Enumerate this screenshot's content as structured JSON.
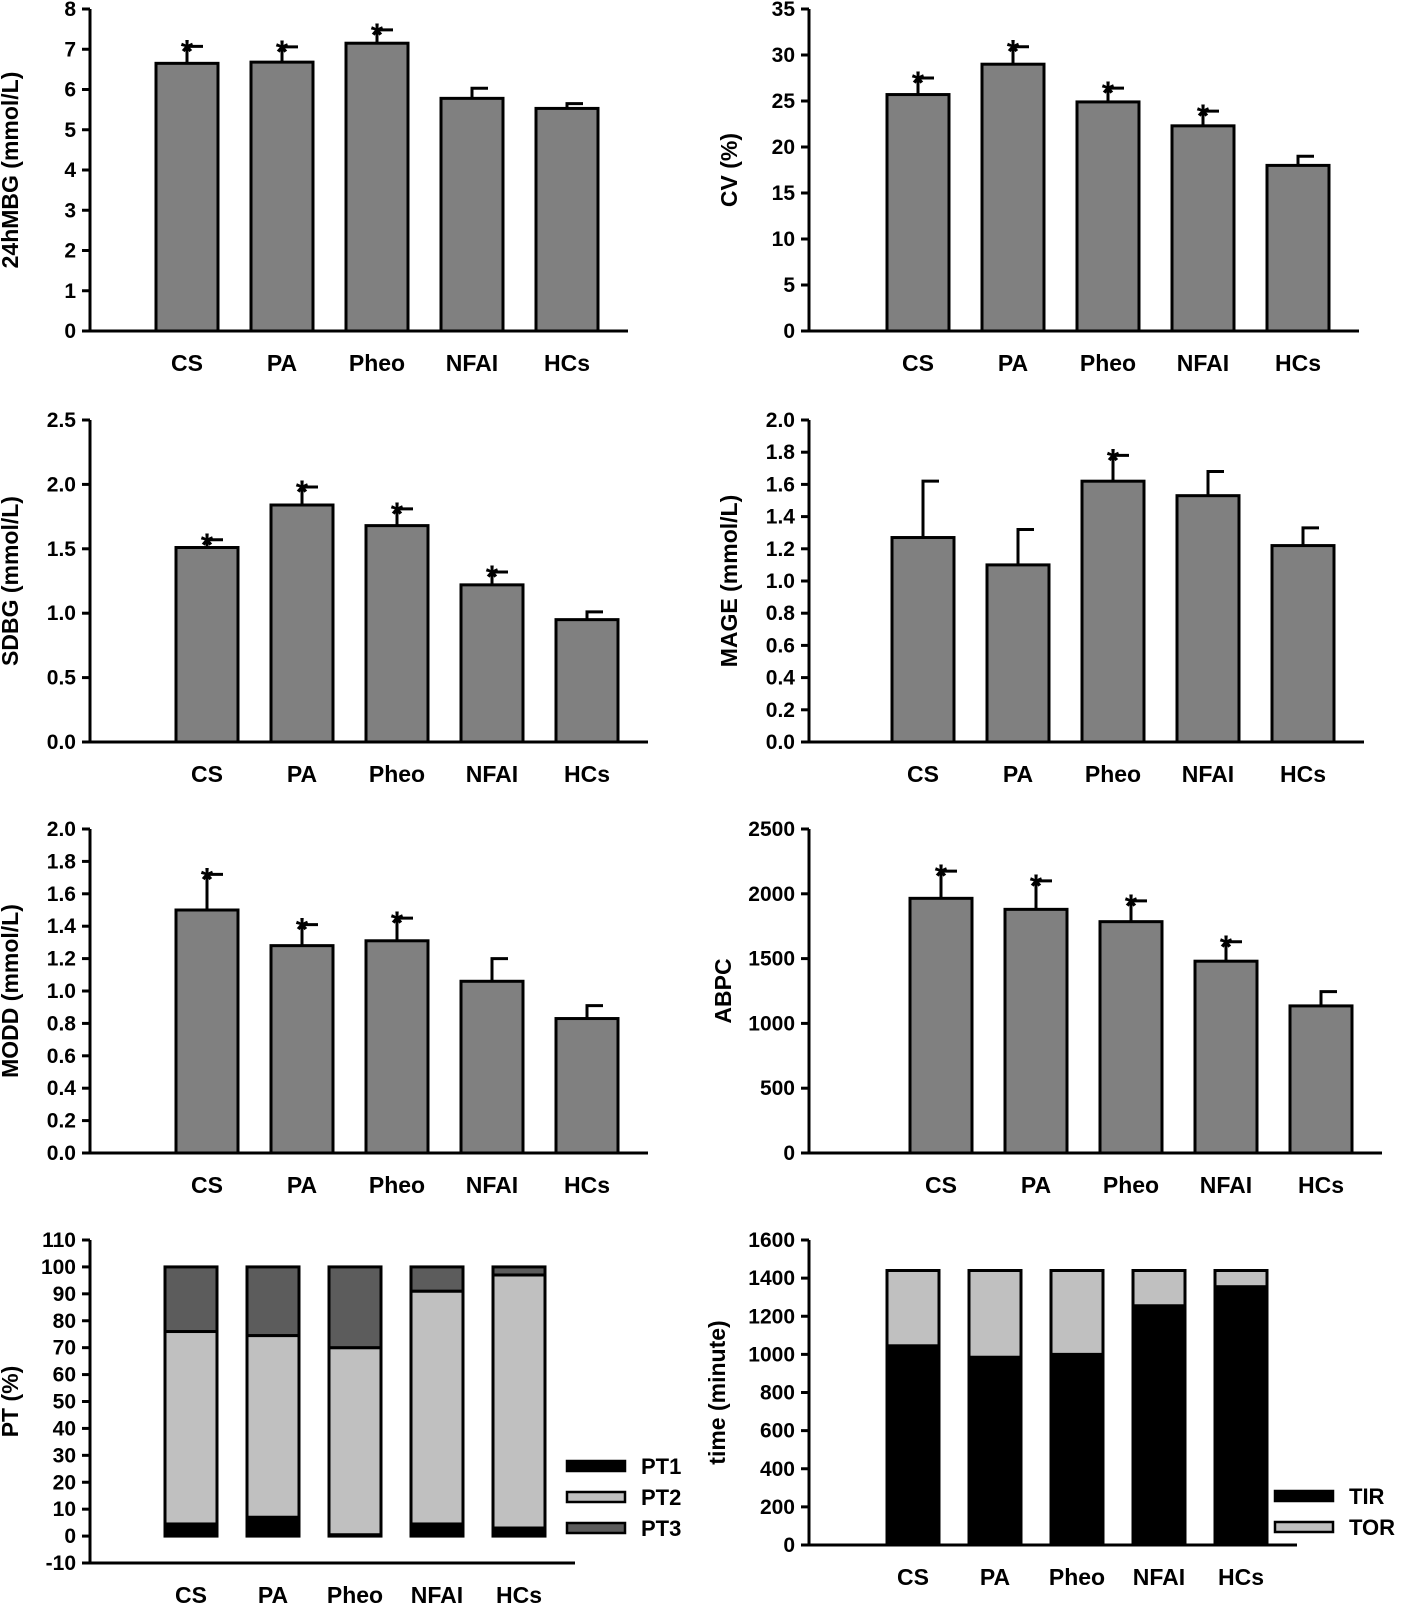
{
  "chart_data": [
    {
      "id": "p1",
      "type": "bar",
      "ylabel": "24hMBG (mmol/L)",
      "categories": [
        "CS",
        "PA",
        "Pheo",
        "NFAI",
        "HCs"
      ],
      "values": [
        6.65,
        6.68,
        7.15,
        5.78,
        5.53
      ],
      "errors": [
        0.42,
        0.38,
        0.33,
        0.25,
        0.12
      ],
      "significant": [
        true,
        true,
        true,
        false,
        false
      ],
      "star": "*",
      "ylim": [
        0,
        8
      ],
      "ticks": [
        "0",
        "1",
        "2",
        "3",
        "4",
        "5",
        "6",
        "7",
        "8"
      ]
    },
    {
      "id": "p2",
      "type": "bar",
      "ylabel": "CV (%)",
      "categories": [
        "CS",
        "PA",
        "Pheo",
        "NFAI",
        "HCs"
      ],
      "values": [
        25.7,
        29.0,
        24.9,
        22.3,
        18.0
      ],
      "errors": [
        1.8,
        1.9,
        1.5,
        1.6,
        1.0
      ],
      "significant": [
        true,
        true,
        true,
        true,
        false
      ],
      "star": "*",
      "ylim": [
        0,
        35
      ],
      "ticks": [
        "0",
        "5",
        "10",
        "15",
        "20",
        "25",
        "30",
        "35"
      ]
    },
    {
      "id": "p3",
      "type": "bar",
      "ylabel": "SDBG (mmol/L)",
      "categories": [
        "CS",
        "PA",
        "Pheo",
        "NFAI",
        "HCs"
      ],
      "values": [
        1.51,
        1.84,
        1.68,
        1.22,
        0.95
      ],
      "errors": [
        0.06,
        0.14,
        0.13,
        0.1,
        0.06
      ],
      "significant": [
        true,
        true,
        true,
        true,
        false
      ],
      "star": "*",
      "ylim": [
        0,
        2.5
      ],
      "ticks": [
        "0.0",
        "0.5",
        "1.0",
        "1.5",
        "2.0",
        "2.5"
      ]
    },
    {
      "id": "p4",
      "type": "bar",
      "ylabel": "MAGE (mmol/L)",
      "categories": [
        "CS",
        "PA",
        "Pheo",
        "NFAI",
        "HCs"
      ],
      "values": [
        1.27,
        1.1,
        1.62,
        1.53,
        1.22
      ],
      "errors": [
        0.35,
        0.22,
        0.16,
        0.15,
        0.11
      ],
      "significant": [
        false,
        false,
        true,
        false,
        false
      ],
      "star": "*",
      "ylim": [
        0,
        2.0
      ],
      "ticks": [
        "0.0",
        "0.2",
        "0.4",
        "0.6",
        "0.8",
        "1.0",
        "1.2",
        "1.4",
        "1.6",
        "1.8",
        "2.0"
      ]
    },
    {
      "id": "p5",
      "type": "bar",
      "ylabel": "MODD (mmol/L)",
      "categories": [
        "CS",
        "PA",
        "Pheo",
        "NFAI",
        "HCs"
      ],
      "values": [
        1.5,
        1.28,
        1.31,
        1.06,
        0.83
      ],
      "errors": [
        0.22,
        0.13,
        0.14,
        0.14,
        0.08
      ],
      "significant": [
        true,
        true,
        true,
        false,
        false
      ],
      "star": "*",
      "ylim": [
        0,
        2.0
      ],
      "ticks": [
        "0.0",
        "0.2",
        "0.4",
        "0.6",
        "0.8",
        "1.0",
        "1.2",
        "1.4",
        "1.6",
        "1.8",
        "2.0"
      ]
    },
    {
      "id": "p6",
      "type": "bar",
      "ylabel": "ABPC",
      "categories": [
        "CS",
        "PA",
        "Pheo",
        "NFAI",
        "HCs"
      ],
      "values": [
        1965,
        1880,
        1785,
        1480,
        1135
      ],
      "errors": [
        210,
        220,
        160,
        150,
        110
      ],
      "significant": [
        true,
        true,
        true,
        true,
        false
      ],
      "star": "*",
      "ylim": [
        0,
        2500
      ],
      "ticks": [
        "0",
        "500",
        "1000",
        "1500",
        "2000",
        "2500"
      ]
    },
    {
      "id": "p7",
      "type": "stacked_bar",
      "ylabel": "PT (%)",
      "categories": [
        "CS",
        "PA",
        "Pheo",
        "NFAI",
        "HCs"
      ],
      "series": [
        {
          "name": "PT1",
          "color": "#000000",
          "values": [
            4.5,
            7.0,
            0.5,
            4.5,
            3.0
          ]
        },
        {
          "name": "PT2",
          "color": "#c0c0c0",
          "values": [
            71.5,
            67.5,
            69.5,
            86.5,
            94.0
          ]
        },
        {
          "name": "PT3",
          "color": "#5c5c5c",
          "values": [
            24.0,
            25.5,
            30.0,
            9.0,
            3.0
          ]
        }
      ],
      "ylim": [
        -10,
        110
      ],
      "ticks": [
        "-10",
        "0",
        "10",
        "20",
        "30",
        "40",
        "50",
        "60",
        "70",
        "80",
        "90",
        "100",
        "110"
      ]
    },
    {
      "id": "p8",
      "type": "stacked_bar",
      "ylabel": "time (minute)",
      "categories": [
        "CS",
        "PA",
        "Pheo",
        "NFAI",
        "HCs"
      ],
      "series": [
        {
          "name": "TIR",
          "color": "#000000",
          "values": [
            1045,
            985,
            1000,
            1255,
            1355
          ]
        },
        {
          "name": "TOR",
          "color": "#c0c0c0",
          "values": [
            395,
            455,
            440,
            185,
            85
          ]
        }
      ],
      "ylim": [
        0,
        1600
      ],
      "ticks": [
        "0",
        "200",
        "400",
        "600",
        "800",
        "1000",
        "1200",
        "1400",
        "1600"
      ]
    }
  ]
}
